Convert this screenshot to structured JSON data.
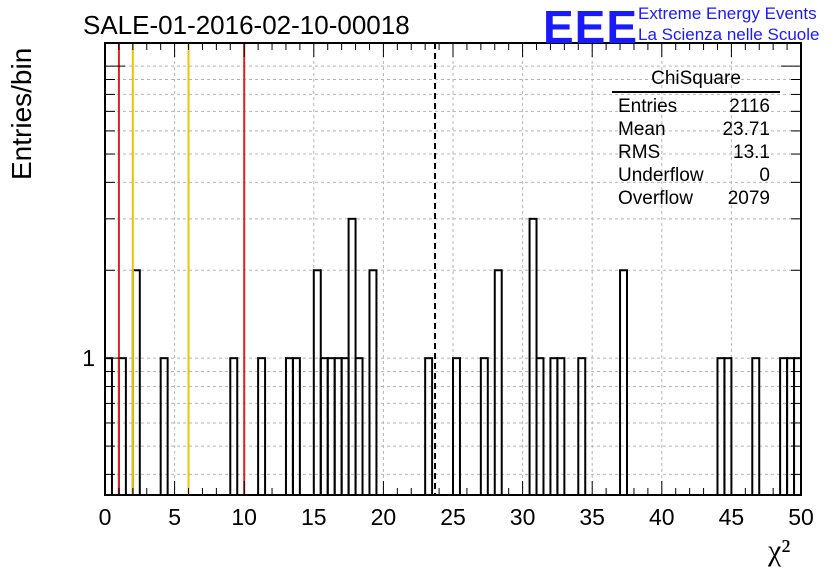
{
  "chart_data": {
    "type": "bar",
    "title": "SALE-01-2016-02-10-00018",
    "xlabel": "χ²",
    "ylabel": "Entries/bin",
    "xlim": [
      0,
      50
    ],
    "ylim_log": [
      0.34,
      12
    ],
    "log_y": true,
    "grid": true,
    "bin_width": 0.5,
    "bins": [
      {
        "x": 0.0,
        "y": 1
      },
      {
        "x": 1.0,
        "y": 1
      },
      {
        "x": 2.0,
        "y": 2
      },
      {
        "x": 4.0,
        "y": 1
      },
      {
        "x": 9.0,
        "y": 1
      },
      {
        "x": 11.0,
        "y": 1
      },
      {
        "x": 13.0,
        "y": 1
      },
      {
        "x": 13.5,
        "y": 1
      },
      {
        "x": 15.0,
        "y": 2
      },
      {
        "x": 15.5,
        "y": 1
      },
      {
        "x": 16.0,
        "y": 1
      },
      {
        "x": 16.5,
        "y": 1
      },
      {
        "x": 17.0,
        "y": 1
      },
      {
        "x": 17.5,
        "y": 3
      },
      {
        "x": 18.0,
        "y": 1
      },
      {
        "x": 19.0,
        "y": 2
      },
      {
        "x": 23.0,
        "y": 1
      },
      {
        "x": 25.0,
        "y": 1
      },
      {
        "x": 27.0,
        "y": 1
      },
      {
        "x": 28.0,
        "y": 2
      },
      {
        "x": 30.5,
        "y": 3
      },
      {
        "x": 31.0,
        "y": 1
      },
      {
        "x": 32.0,
        "y": 1
      },
      {
        "x": 32.5,
        "y": 1
      },
      {
        "x": 34.0,
        "y": 1
      },
      {
        "x": 37.0,
        "y": 2
      },
      {
        "x": 44.0,
        "y": 1
      },
      {
        "x": 44.5,
        "y": 1
      },
      {
        "x": 46.5,
        "y": 1
      },
      {
        "x": 48.5,
        "y": 1
      },
      {
        "x": 49.0,
        "y": 1
      },
      {
        "x": 49.5,
        "y": 1
      }
    ],
    "x_ticks": [
      "0",
      "5",
      "10",
      "15",
      "20",
      "25",
      "30",
      "35",
      "40",
      "45",
      "50"
    ],
    "y_ticks": [
      "1"
    ],
    "vertical_lines": [
      {
        "x": 1.0,
        "color": "#dd2222"
      },
      {
        "x": 2.0,
        "color": "#f2c200"
      },
      {
        "x": 6.0,
        "color": "#f2c200"
      },
      {
        "x": 10.0,
        "color": "#dd2222"
      },
      {
        "x": 23.71,
        "color": "#000000",
        "dashed": true
      }
    ]
  },
  "stats": {
    "name": "ChiSquare",
    "rows": [
      {
        "label": "Entries",
        "value": "2116"
      },
      {
        "label": "Mean",
        "value": "23.71"
      },
      {
        "label": "RMS",
        "value": "13.1"
      },
      {
        "label": "Underflow",
        "value": "0"
      },
      {
        "label": "Overflow",
        "value": "2079"
      }
    ]
  },
  "logo": {
    "mark": "EEE",
    "line1": "Extreme Energy Events",
    "line2": "La Scienza nelle Scuole",
    "color": "#1a1aff"
  }
}
